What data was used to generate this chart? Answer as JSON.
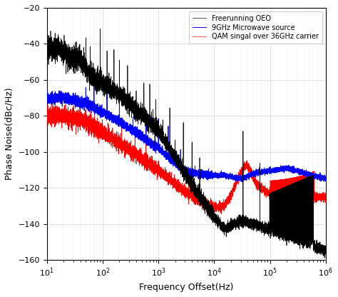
{
  "title": "",
  "xlabel": "Frequency Offset(Hz)",
  "ylabel": "Phase Noise(dBc/Hz)",
  "xlim": [
    10,
    1000000
  ],
  "ylim": [
    -160,
    -20
  ],
  "yticks": [
    -160,
    -140,
    -120,
    -100,
    -80,
    -60,
    -40,
    -20
  ],
  "legend": [
    "Freerunning OEO",
    "9GHz Microwave source",
    "QAM singal over 36GHz carrier"
  ],
  "line_colors": [
    "black",
    "blue",
    "red"
  ],
  "background_color": "#ffffff",
  "grid_color": "#c8c8c8"
}
